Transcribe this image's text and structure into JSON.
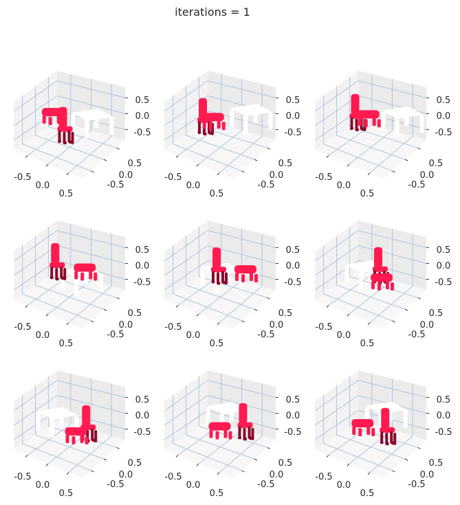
{
  "figure_title": "iterations = 1",
  "chart_data": {
    "type": "scatter",
    "projection": "3d",
    "grid": true,
    "title": "iterations = 1",
    "axis_ticks": {
      "x": [
        "-0.5",
        "0.0",
        "0.5"
      ],
      "y": [
        "0.5",
        "0.0",
        "-0.5"
      ],
      "z": [
        "0.5",
        "0.0",
        "-0.5"
      ]
    },
    "xlim": [
      -1,
      1
    ],
    "ylim": [
      -1,
      1
    ],
    "zlim": [
      -1,
      1
    ],
    "colors": {
      "scatter_point": "#ff1a50",
      "scatter_shadow": "#8a0a2a",
      "pane": "#f2f2f2",
      "grid": "#b0c4de",
      "table_point": "#ffffff"
    },
    "panels": [
      {
        "table": {
          "x": 0.45,
          "y": 0.2
        },
        "chair_upright": {
          "x": 0.15,
          "y": -0.55
        },
        "stool": {
          "x": -0.55,
          "y": -0.1
        }
      },
      {
        "table": {
          "x": 0.45,
          "y": 0.55
        },
        "chair_upright": {
          "x": -0.35,
          "y": -0.35
        },
        "stool": {
          "x": -0.2,
          "y": -0.15
        }
      },
      {
        "table": {
          "x": 0.55,
          "y": 0.45
        },
        "chair_upright": {
          "x": -0.45,
          "y": -0.15
        },
        "stool": {
          "x": -0.2,
          "y": 0.05
        }
      },
      {
        "table": {
          "x": 0.5,
          "y": -0.3
        },
        "chair_upright": {
          "x": -0.45,
          "y": -0.1
        },
        "stool": {
          "x": 0.25,
          "y": 0.2
        }
      },
      {
        "table": {
          "x": 0.2,
          "y": -0.35
        },
        "chair_upright": {
          "x": -0.1,
          "y": -0.1
        },
        "stool": {
          "x": 0.5,
          "y": 0.3
        }
      },
      {
        "table": {
          "x": 0.0,
          "y": -0.35
        },
        "chair_upright": {
          "x": 0.1,
          "y": 0.1
        },
        "stool": {
          "x": 0.5,
          "y": -0.3
        }
      },
      {
        "table": {
          "x": -0.25,
          "y": -0.35
        },
        "chair_upright": {
          "x": 0.55,
          "y": -0.1
        },
        "stool": {
          "x": 0.55,
          "y": -0.55
        }
      },
      {
        "table": {
          "x": -0.05,
          "y": 0.2
        },
        "chair_upright": {
          "x": 0.6,
          "y": 0.1
        },
        "stool": {
          "x": 0.25,
          "y": -0.45
        }
      },
      {
        "table": {
          "x": 0.1,
          "y": 0.35
        },
        "chair_upright": {
          "x": 0.6,
          "y": -0.25
        },
        "stool": {
          "x": 0.0,
          "y": -0.45
        }
      }
    ]
  }
}
